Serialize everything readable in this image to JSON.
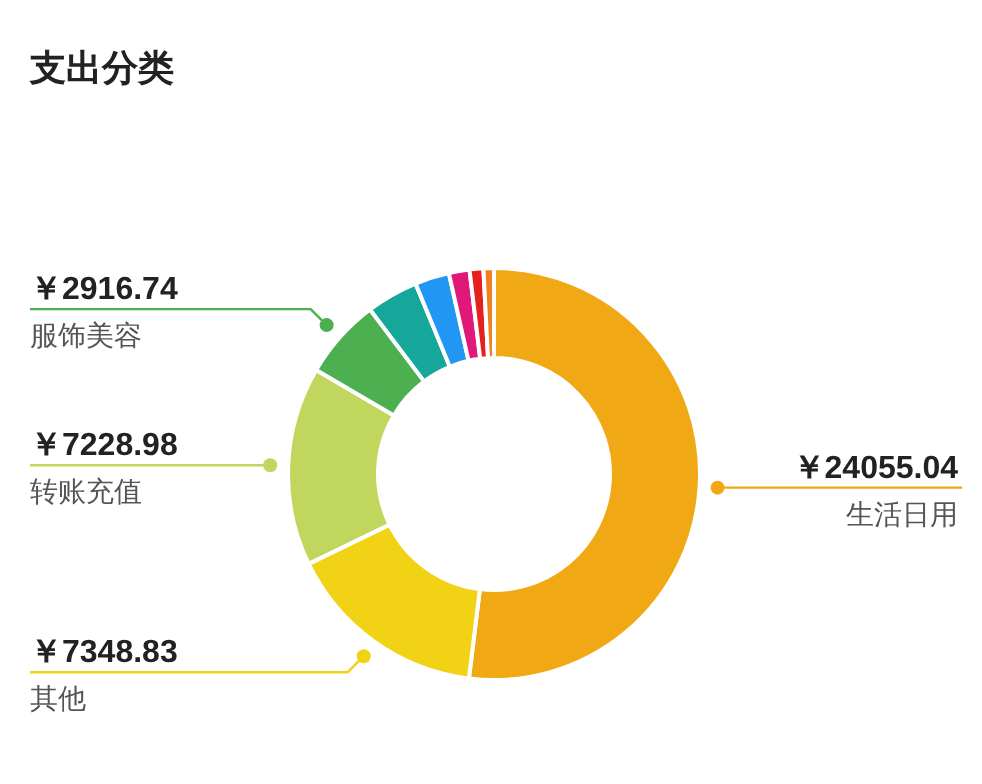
{
  "chart_data": {
    "type": "donut",
    "title": "支出分类",
    "categories": [
      "生活日用",
      "其他",
      "转账充值",
      "服饰美容",
      null,
      null,
      null,
      null,
      null
    ],
    "values": [
      24055.04,
      7348.83,
      7228.98,
      2916.74,
      1880,
      1250,
      750,
      500,
      380
    ],
    "value_labels": [
      "￥24055.04",
      "￥7348.83",
      "￥7228.98",
      "￥2916.74",
      null,
      null,
      null,
      null,
      null
    ],
    "colors": [
      "#f0a814",
      "#f2d214",
      "#c0d65c",
      "#4cb050",
      "#15a89a",
      "#2196f3",
      "#e0187a",
      "#e52020",
      "#f08020"
    ]
  }
}
